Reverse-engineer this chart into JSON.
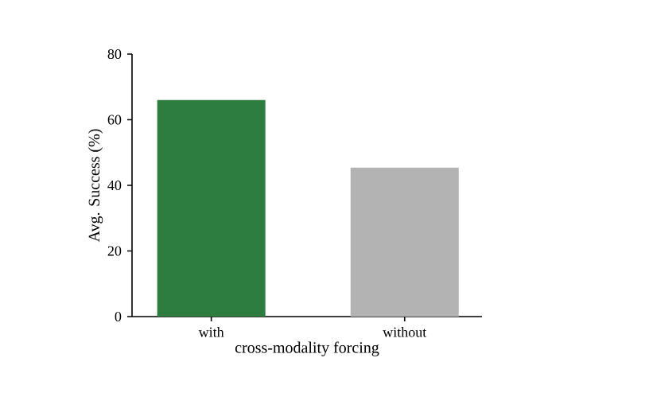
{
  "chart_data": {
    "type": "bar",
    "xlabel": "cross-modality forcing",
    "ylabel": "Avg. Success (%)",
    "categories": [
      "with",
      "without"
    ],
    "values": [
      66,
      45.4
    ],
    "colors": [
      "#2e7d40",
      "#b3b3b3"
    ],
    "ylim": [
      0,
      80
    ],
    "yticks": [
      0,
      20,
      40,
      60,
      80
    ],
    "grid": false
  }
}
